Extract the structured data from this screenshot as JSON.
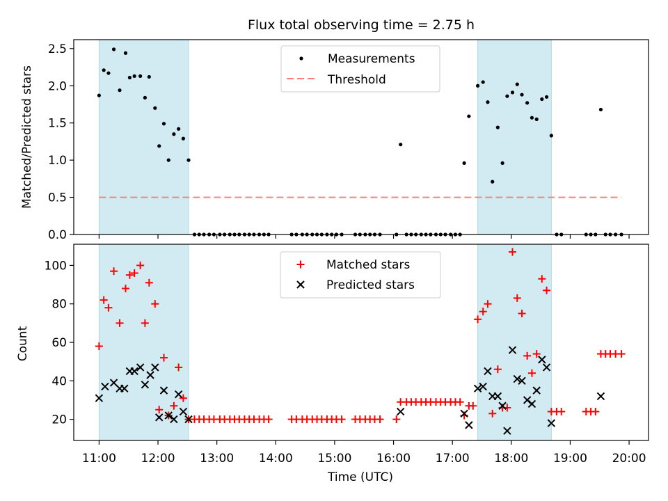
{
  "chart_data": {
    "type": "scatter",
    "title": "Flux total observing time = 2.75 h",
    "xlabel": "Time (UTC)",
    "x_ticks": [
      "11:00",
      "12:00",
      "13:00",
      "14:00",
      "15:00",
      "16:00",
      "17:00",
      "18:00",
      "19:00",
      "20:00"
    ],
    "x_tick_hours": [
      11,
      12,
      13,
      14,
      15,
      16,
      17,
      18,
      19,
      20
    ],
    "xlim": [
      10.57,
      20.33
    ],
    "shaded_intervals": [
      [
        11.0,
        12.52
      ],
      [
        17.43,
        18.68
      ]
    ],
    "colors": {
      "shade": "#add8e6",
      "measure": "#000000",
      "threshold": "#ff7f7f",
      "matched": "#ff0000",
      "predicted": "#000000"
    },
    "panels": {
      "top": {
        "ylabel": "Matched/Predicted stars",
        "ylim": [
          0,
          2.62
        ],
        "y_ticks": [
          0.0,
          0.5,
          1.0,
          1.5,
          2.0,
          2.5
        ],
        "y_tick_labels": [
          "0.0",
          "0.5",
          "1.0",
          "1.5",
          "2.0",
          "2.5"
        ],
        "legend": {
          "position": "upper-center",
          "items": [
            "Measurements",
            "Threshold"
          ]
        },
        "threshold": {
          "value": 0.5,
          "x_range": [
            11.0,
            19.87
          ]
        },
        "measurements": [
          [
            11.0,
            1.87
          ],
          [
            11.08,
            2.21
          ],
          [
            11.16,
            2.17
          ],
          [
            11.25,
            2.49
          ],
          [
            11.35,
            1.94
          ],
          [
            11.45,
            2.44
          ],
          [
            11.52,
            2.11
          ],
          [
            11.6,
            2.13
          ],
          [
            11.7,
            2.13
          ],
          [
            11.78,
            1.84
          ],
          [
            11.85,
            2.12
          ],
          [
            11.95,
            1.7
          ],
          [
            12.02,
            1.19
          ],
          [
            12.1,
            1.49
          ],
          [
            12.18,
            1.0
          ],
          [
            12.27,
            1.35
          ],
          [
            12.35,
            1.42
          ],
          [
            12.43,
            1.29
          ],
          [
            12.52,
            1.0
          ],
          [
            12.62,
            0
          ],
          [
            12.7,
            0
          ],
          [
            12.78,
            0
          ],
          [
            12.87,
            0
          ],
          [
            12.95,
            0
          ],
          [
            13.05,
            0
          ],
          [
            13.13,
            0
          ],
          [
            13.22,
            0
          ],
          [
            13.3,
            0
          ],
          [
            13.38,
            0
          ],
          [
            13.47,
            0
          ],
          [
            13.55,
            0
          ],
          [
            13.63,
            0
          ],
          [
            13.72,
            0
          ],
          [
            13.8,
            0
          ],
          [
            13.88,
            0
          ],
          [
            14.27,
            0
          ],
          [
            14.35,
            0
          ],
          [
            14.45,
            0
          ],
          [
            14.53,
            0
          ],
          [
            14.62,
            0
          ],
          [
            14.7,
            0
          ],
          [
            14.78,
            0
          ],
          [
            14.87,
            0
          ],
          [
            14.95,
            0
          ],
          [
            15.03,
            0
          ],
          [
            15.12,
            0
          ],
          [
            15.35,
            0
          ],
          [
            15.43,
            0
          ],
          [
            15.52,
            0
          ],
          [
            15.6,
            0
          ],
          [
            15.68,
            0
          ],
          [
            15.77,
            0
          ],
          [
            16.05,
            0
          ],
          [
            16.12,
            1.21
          ],
          [
            16.22,
            0
          ],
          [
            16.3,
            0
          ],
          [
            16.38,
            0
          ],
          [
            16.47,
            0
          ],
          [
            16.55,
            0
          ],
          [
            16.63,
            0
          ],
          [
            16.72,
            0
          ],
          [
            16.8,
            0
          ],
          [
            16.88,
            0
          ],
          [
            16.97,
            0
          ],
          [
            17.05,
            0
          ],
          [
            17.13,
            0
          ],
          [
            17.2,
            0.96
          ],
          [
            17.28,
            1.59
          ],
          [
            17.43,
            2.0
          ],
          [
            17.52,
            2.05
          ],
          [
            17.6,
            1.78
          ],
          [
            17.68,
            0.71
          ],
          [
            17.77,
            1.44
          ],
          [
            17.85,
            0.96
          ],
          [
            17.93,
            1.86
          ],
          [
            18.02,
            1.91
          ],
          [
            18.1,
            2.02
          ],
          [
            18.18,
            1.88
          ],
          [
            18.27,
            1.77
          ],
          [
            18.35,
            1.57
          ],
          [
            18.43,
            1.55
          ],
          [
            18.52,
            1.82
          ],
          [
            18.6,
            1.85
          ],
          [
            18.68,
            1.33
          ],
          [
            18.77,
            0
          ],
          [
            18.85,
            0
          ],
          [
            19.27,
            0
          ],
          [
            19.35,
            0
          ],
          [
            19.43,
            0
          ],
          [
            19.52,
            1.68
          ],
          [
            19.6,
            0
          ],
          [
            19.68,
            0
          ],
          [
            19.77,
            0
          ],
          [
            19.87,
            0
          ]
        ]
      },
      "bottom": {
        "ylabel": "Count",
        "ylim": [
          9,
          111
        ],
        "y_ticks": [
          20,
          40,
          60,
          80,
          100
        ],
        "y_tick_labels": [
          "20",
          "40",
          "60",
          "80",
          "100"
        ],
        "legend": {
          "position": "upper-center",
          "items": [
            "Matched stars",
            "Predicted stars"
          ]
        },
        "matched": [
          [
            11.0,
            58
          ],
          [
            11.08,
            82
          ],
          [
            11.16,
            78
          ],
          [
            11.25,
            97
          ],
          [
            11.35,
            70
          ],
          [
            11.45,
            88
          ],
          [
            11.52,
            95
          ],
          [
            11.6,
            96
          ],
          [
            11.7,
            100
          ],
          [
            11.78,
            70
          ],
          [
            11.85,
            91
          ],
          [
            11.95,
            80
          ],
          [
            12.02,
            25
          ],
          [
            12.1,
            52
          ],
          [
            12.18,
            22
          ],
          [
            12.27,
            27
          ],
          [
            12.35,
            47
          ],
          [
            12.43,
            31
          ],
          [
            12.52,
            20
          ],
          [
            12.62,
            20
          ],
          [
            12.7,
            20
          ],
          [
            12.78,
            20
          ],
          [
            12.87,
            20
          ],
          [
            12.95,
            20
          ],
          [
            13.05,
            20
          ],
          [
            13.13,
            20
          ],
          [
            13.22,
            20
          ],
          [
            13.3,
            20
          ],
          [
            13.38,
            20
          ],
          [
            13.47,
            20
          ],
          [
            13.55,
            20
          ],
          [
            13.63,
            20
          ],
          [
            13.72,
            20
          ],
          [
            13.8,
            20
          ],
          [
            13.88,
            20
          ],
          [
            14.27,
            20
          ],
          [
            14.35,
            20
          ],
          [
            14.45,
            20
          ],
          [
            14.53,
            20
          ],
          [
            14.62,
            20
          ],
          [
            14.7,
            20
          ],
          [
            14.78,
            20
          ],
          [
            14.87,
            20
          ],
          [
            14.95,
            20
          ],
          [
            15.03,
            20
          ],
          [
            15.12,
            20
          ],
          [
            15.35,
            20
          ],
          [
            15.43,
            20
          ],
          [
            15.52,
            20
          ],
          [
            15.6,
            20
          ],
          [
            15.68,
            20
          ],
          [
            15.77,
            20
          ],
          [
            16.05,
            20
          ],
          [
            16.12,
            29
          ],
          [
            16.22,
            29
          ],
          [
            16.3,
            29
          ],
          [
            16.38,
            29
          ],
          [
            16.47,
            29
          ],
          [
            16.55,
            29
          ],
          [
            16.63,
            29
          ],
          [
            16.72,
            29
          ],
          [
            16.8,
            29
          ],
          [
            16.88,
            29
          ],
          [
            16.97,
            29
          ],
          [
            17.05,
            29
          ],
          [
            17.13,
            29
          ],
          [
            17.2,
            22
          ],
          [
            17.28,
            27
          ],
          [
            17.35,
            27
          ],
          [
            17.43,
            72
          ],
          [
            17.52,
            76
          ],
          [
            17.6,
            80
          ],
          [
            17.68,
            23
          ],
          [
            17.77,
            46
          ],
          [
            17.85,
            26
          ],
          [
            17.93,
            26
          ],
          [
            18.02,
            107
          ],
          [
            18.1,
            83
          ],
          [
            18.18,
            75
          ],
          [
            18.27,
            53
          ],
          [
            18.35,
            44
          ],
          [
            18.43,
            54
          ],
          [
            18.52,
            93
          ],
          [
            18.6,
            87
          ],
          [
            18.68,
            24
          ],
          [
            18.77,
            24
          ],
          [
            18.85,
            24
          ],
          [
            19.27,
            24
          ],
          [
            19.35,
            24
          ],
          [
            19.43,
            24
          ],
          [
            19.52,
            54
          ],
          [
            19.6,
            54
          ],
          [
            19.68,
            54
          ],
          [
            19.77,
            54
          ],
          [
            19.87,
            54
          ]
        ],
        "predicted": [
          [
            11.0,
            31
          ],
          [
            11.1,
            37
          ],
          [
            11.25,
            39
          ],
          [
            11.35,
            36
          ],
          [
            11.43,
            36
          ],
          [
            11.52,
            45
          ],
          [
            11.6,
            45
          ],
          [
            11.7,
            47
          ],
          [
            11.78,
            38
          ],
          [
            11.87,
            43
          ],
          [
            11.95,
            47
          ],
          [
            12.02,
            21
          ],
          [
            12.1,
            35
          ],
          [
            12.18,
            22
          ],
          [
            12.27,
            20
          ],
          [
            12.35,
            33
          ],
          [
            12.43,
            24
          ],
          [
            12.52,
            20
          ],
          [
            16.12,
            24
          ],
          [
            17.2,
            23
          ],
          [
            17.28,
            17
          ],
          [
            17.43,
            36
          ],
          [
            17.52,
            37
          ],
          [
            17.6,
            45
          ],
          [
            17.68,
            32
          ],
          [
            17.77,
            32
          ],
          [
            17.85,
            27
          ],
          [
            17.93,
            14
          ],
          [
            18.02,
            56
          ],
          [
            18.1,
            41
          ],
          [
            18.18,
            40
          ],
          [
            18.27,
            30
          ],
          [
            18.35,
            28
          ],
          [
            18.43,
            35
          ],
          [
            18.52,
            51
          ],
          [
            18.6,
            47
          ],
          [
            18.68,
            18
          ],
          [
            19.52,
            32
          ]
        ]
      }
    }
  }
}
